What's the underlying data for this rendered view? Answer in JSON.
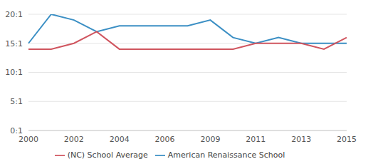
{
  "chart_data": {
    "type": "line",
    "categories": [
      "2000",
      null,
      "2002",
      null,
      "2004",
      null,
      "2006",
      null,
      "2009",
      null,
      "2011",
      null,
      "2013",
      null,
      "2015"
    ],
    "series": [
      {
        "name": "American Renaissance School",
        "color": "#3b8fc4",
        "values": [
          15,
          20,
          19,
          17,
          18,
          18,
          18,
          18,
          19,
          16,
          15,
          16,
          15,
          15,
          15
        ]
      },
      {
        "name": "(NC) School Average",
        "color": "#d0555f",
        "values": [
          14,
          14,
          15,
          17,
          14,
          14,
          14,
          14,
          14,
          14,
          15,
          15,
          15,
          14,
          16
        ]
      }
    ],
    "ylim": [
      0,
      20
    ],
    "yticks": [
      {
        "value": 0,
        "label": "0:1"
      },
      {
        "value": 5,
        "label": "5:1"
      },
      {
        "value": 10,
        "label": "10:1"
      },
      {
        "value": 15,
        "label": "15:1"
      },
      {
        "value": 20,
        "label": "20:1"
      }
    ],
    "grid": true,
    "legend": "bottom"
  }
}
